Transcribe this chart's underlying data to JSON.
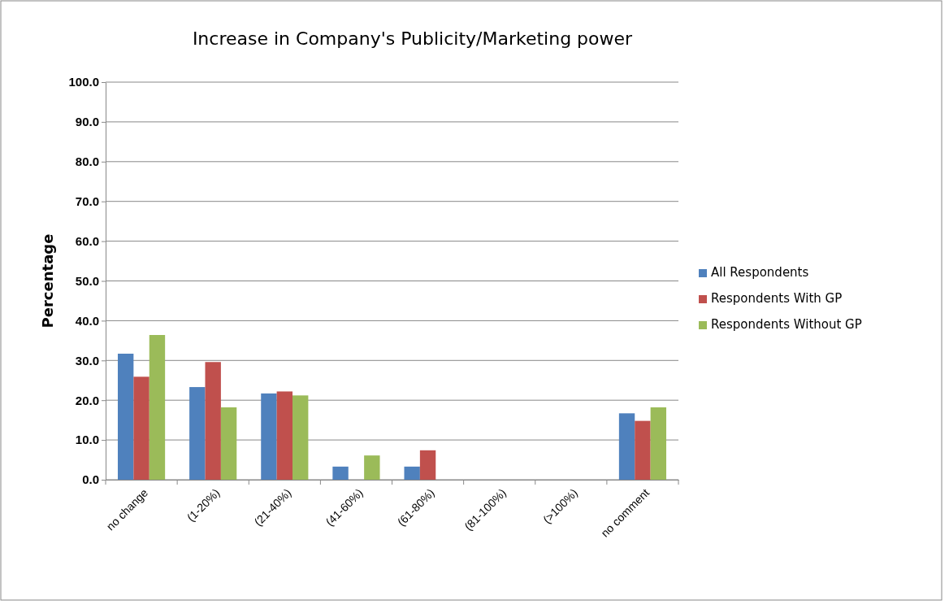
{
  "chart_data": {
    "type": "bar",
    "title": "Increase in Company's Publicity/Marketing power",
    "ylabel": "Percentage",
    "categories": [
      "no change",
      "(1-20%)",
      "(21-40%)",
      "(41-60%)",
      "(61-80%)",
      "(81-100%)",
      "(>100%)",
      "no comment"
    ],
    "series": [
      {
        "name": "All Respondents",
        "color": "#4f81bd",
        "values": [
          31.7,
          23.3,
          21.7,
          3.3,
          3.3,
          0,
          0,
          16.7
        ]
      },
      {
        "name": "Respondents With GP",
        "color": "#c0504d",
        "values": [
          25.9,
          29.6,
          22.2,
          0,
          7.4,
          0,
          0,
          14.8
        ]
      },
      {
        "name": "Respondents Without GP",
        "color": "#9bbb59",
        "values": [
          36.4,
          18.2,
          21.2,
          6.1,
          0,
          0,
          0,
          18.2
        ]
      }
    ],
    "ylim": [
      0,
      100
    ],
    "yticks": [
      {
        "value": 0,
        "label": "0.0"
      },
      {
        "value": 10,
        "label": "10.0"
      },
      {
        "value": 20,
        "label": "20.0"
      },
      {
        "value": 30,
        "label": "30.0"
      },
      {
        "value": 40,
        "label": "40.0"
      },
      {
        "value": 50,
        "label": "50.0"
      },
      {
        "value": 60,
        "label": "60.0"
      },
      {
        "value": 70,
        "label": "70.0"
      },
      {
        "value": 80,
        "label": "80.0"
      },
      {
        "value": 90,
        "label": "90.0"
      },
      {
        "value": 100,
        "label": "100.0"
      }
    ],
    "grid": "y",
    "legend": "right"
  }
}
